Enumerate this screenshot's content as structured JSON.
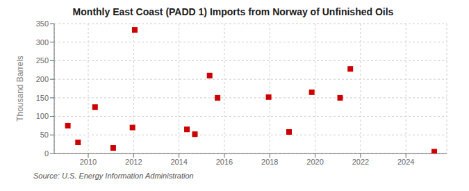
{
  "chart_data": {
    "type": "scatter",
    "title": "Monthly East Coast (PADD 1) Imports from Norway of Unfinished Oils",
    "ylabel": "Thousand Barrels",
    "source": "Source: U.S. Energy Information Administration",
    "x": [
      2009.1,
      2009.55,
      2010.3,
      2011.1,
      2011.95,
      2012.05,
      2014.35,
      2014.7,
      2015.35,
      2015.7,
      2017.95,
      2018.85,
      2019.85,
      2021.1,
      2021.55,
      2025.25
    ],
    "values": [
      75,
      30,
      125,
      15,
      70,
      333,
      65,
      52,
      210,
      150,
      152,
      58,
      165,
      150,
      228,
      5
    ],
    "color": "#cc0000",
    "marker": "square",
    "xlim": [
      2008.5,
      2025.8
    ],
    "xticks": [
      2010,
      2012,
      2014,
      2016,
      2018,
      2020,
      2022,
      2024
    ],
    "ylim": [
      0,
      350
    ],
    "yticks": [
      0,
      50,
      100,
      150,
      200,
      250,
      300,
      350
    ],
    "grid": true
  }
}
